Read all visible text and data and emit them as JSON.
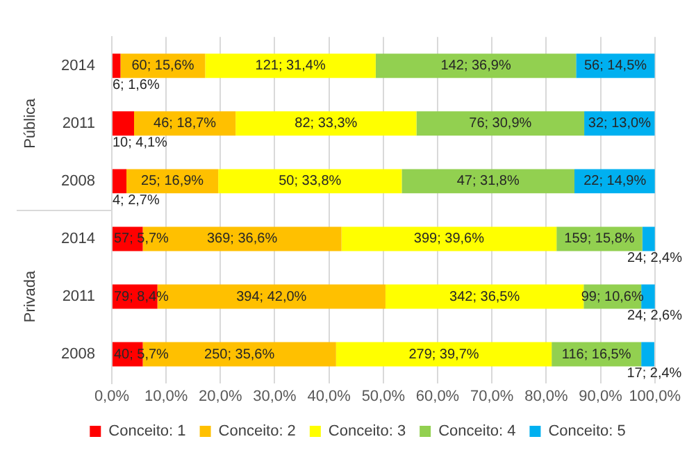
{
  "chart_data": {
    "type": "bar",
    "orientation": "horizontal",
    "stacked": true,
    "categories": [
      "2014",
      "2011",
      "2008",
      "2014",
      "2011",
      "2008"
    ],
    "annotations": [
      "Pública",
      "Privada"
    ],
    "series": [
      {
        "name": "Conceito: 1",
        "color": "#ff0000",
        "values": [
          1.6,
          4.1,
          2.7,
          5.7,
          8.4,
          5.7
        ],
        "value_labels": [
          "6; 1,6%",
          "10; 4,1%",
          "4; 2,7%",
          "57; 5,7%",
          "79; 8,4%",
          "40; 5,7%"
        ]
      },
      {
        "name": "Conceito: 2",
        "color": "#ffc000",
        "values": [
          15.6,
          18.7,
          16.9,
          36.6,
          42.0,
          35.6
        ],
        "value_labels": [
          "60; 15,6%",
          "46; 18,7%",
          "25; 16,9%",
          "369; 36,6%",
          "394; 42,0%",
          "250; 35,6%"
        ]
      },
      {
        "name": "Conceito: 3",
        "color": "#ffff00",
        "values": [
          31.4,
          33.3,
          33.8,
          39.6,
          36.5,
          39.7
        ],
        "value_labels": [
          "121; 31,4%",
          "82; 33,3%",
          "50; 33,8%",
          "399; 39,6%",
          "342; 36,5%",
          "279; 39,7%"
        ]
      },
      {
        "name": "Conceito: 4",
        "color": "#92d050",
        "values": [
          36.9,
          30.9,
          31.8,
          15.8,
          10.6,
          16.5
        ],
        "value_labels": [
          "142; 36,9%",
          "76; 30,9%",
          "47; 31,8%",
          "159; 15,8%",
          "99; 10,6%",
          "116; 16,5%"
        ]
      },
      {
        "name": "Conceito: 5",
        "color": "#00b0f0",
        "values": [
          14.5,
          13.0,
          14.9,
          2.4,
          2.6,
          2.4
        ],
        "value_labels": [
          "56; 14,5%",
          "32; 13,0%",
          "22; 14,9%",
          "24; 2,4%",
          "24; 2,6%",
          "17; 2,4%"
        ]
      }
    ],
    "xlim": [
      0,
      100
    ],
    "xticks": [
      {
        "value": 0,
        "label": "0,0%"
      },
      {
        "value": 10,
        "label": "10,0%"
      },
      {
        "value": 20,
        "label": "20,0%"
      },
      {
        "value": 30,
        "label": "30,0%"
      },
      {
        "value": 40,
        "label": "40,0%"
      },
      {
        "value": 50,
        "label": "50,0%"
      },
      {
        "value": 60,
        "label": "60,0%"
      },
      {
        "value": 70,
        "label": "70,0%"
      },
      {
        "value": 80,
        "label": "80,0%"
      },
      {
        "value": 90,
        "label": "90,0%"
      },
      {
        "value": 100,
        "label": "100,0%"
      }
    ],
    "grid": "x",
    "legend": "bottom"
  }
}
